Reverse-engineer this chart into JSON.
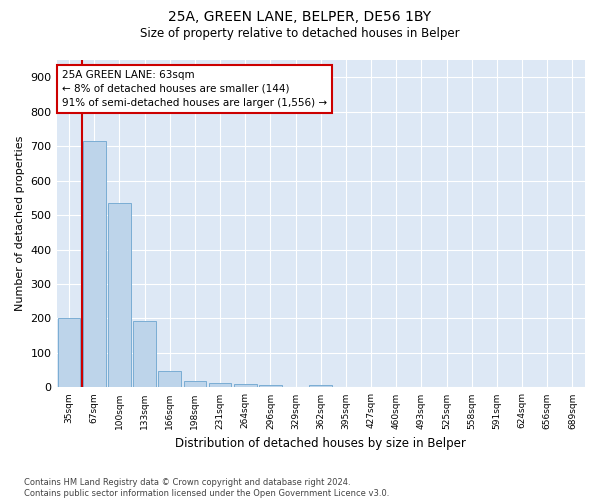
{
  "title1": "25A, GREEN LANE, BELPER, DE56 1BY",
  "title2": "Size of property relative to detached houses in Belper",
  "xlabel": "Distribution of detached houses by size in Belper",
  "ylabel": "Number of detached properties",
  "categories": [
    "35sqm",
    "67sqm",
    "100sqm",
    "133sqm",
    "166sqm",
    "198sqm",
    "231sqm",
    "264sqm",
    "296sqm",
    "329sqm",
    "362sqm",
    "395sqm",
    "427sqm",
    "460sqm",
    "493sqm",
    "525sqm",
    "558sqm",
    "591sqm",
    "624sqm",
    "656sqm",
    "689sqm"
  ],
  "values": [
    200,
    715,
    535,
    192,
    47,
    20,
    13,
    10,
    8,
    0,
    8,
    0,
    0,
    0,
    0,
    0,
    0,
    0,
    0,
    0,
    0
  ],
  "bar_color": "#bdd4ea",
  "bar_edge_color": "#7aadd4",
  "vline_color": "#cc0000",
  "annotation_line1": "25A GREEN LANE: 63sqm",
  "annotation_line2": "← 8% of detached houses are smaller (144)",
  "annotation_line3": "91% of semi-detached houses are larger (1,556) →",
  "annotation_box_facecolor": "#ffffff",
  "annotation_box_edgecolor": "#cc0000",
  "ylim": [
    0,
    950
  ],
  "yticks": [
    0,
    100,
    200,
    300,
    400,
    500,
    600,
    700,
    800,
    900
  ],
  "footer": "Contains HM Land Registry data © Crown copyright and database right 2024.\nContains public sector information licensed under the Open Government Licence v3.0.",
  "plot_bg_color": "#dde8f5",
  "fig_bg_color": "#ffffff",
  "grid_color": "#ffffff"
}
